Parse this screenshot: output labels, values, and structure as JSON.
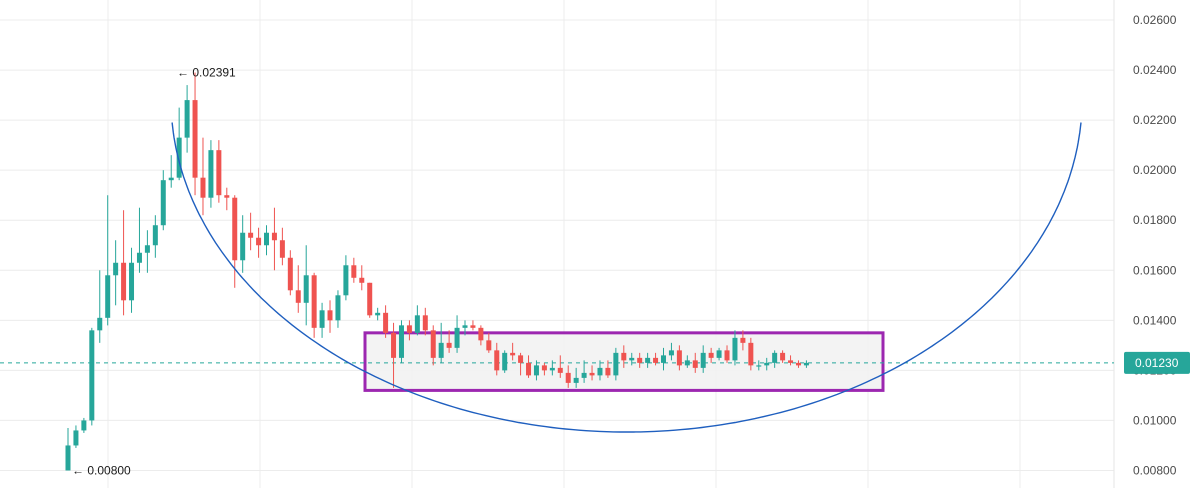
{
  "chart_data": {
    "type": "candlestick",
    "title": "",
    "ylim": [
      0.0073,
      0.0268
    ],
    "y_ticks": [
      "0.02600",
      "0.02400",
      "0.02200",
      "0.02000",
      "0.01800",
      "0.01600",
      "0.01400",
      "0.01200",
      "0.01000",
      "0.00800"
    ],
    "grid": true,
    "current_price": {
      "value": 0.0123,
      "label": "0.01230",
      "color": "#26a69a"
    },
    "colors": {
      "up": "#26a69a",
      "down": "#ef5350",
      "curve": "#2962ff",
      "range_box": "#9c27b0",
      "grid": "#ececec"
    },
    "annotations": {
      "high": {
        "value": 0.02391,
        "label": "← 0.02391"
      },
      "low": {
        "value": 0.008,
        "label": "← 0.00800"
      }
    },
    "range_box": {
      "from": 0.0112,
      "to": 0.0135
    },
    "candles": [
      [
        0.008,
        0.0097,
        0.008,
        0.009
      ],
      [
        0.009,
        0.0098,
        0.0089,
        0.0096
      ],
      [
        0.0096,
        0.0101,
        0.0095,
        0.01
      ],
      [
        0.01,
        0.0137,
        0.0098,
        0.0136
      ],
      [
        0.0136,
        0.016,
        0.0131,
        0.0141
      ],
      [
        0.0141,
        0.019,
        0.0138,
        0.0158
      ],
      [
        0.0158,
        0.0172,
        0.0146,
        0.0163
      ],
      [
        0.0163,
        0.0184,
        0.0142,
        0.0148
      ],
      [
        0.0148,
        0.0169,
        0.0143,
        0.0163
      ],
      [
        0.0163,
        0.0185,
        0.0159,
        0.0167
      ],
      [
        0.0167,
        0.0176,
        0.0159,
        0.017
      ],
      [
        0.017,
        0.0182,
        0.0165,
        0.0178
      ],
      [
        0.0178,
        0.02,
        0.0176,
        0.0196
      ],
      [
        0.0196,
        0.0206,
        0.0193,
        0.0197
      ],
      [
        0.0197,
        0.0225,
        0.0196,
        0.0213
      ],
      [
        0.0213,
        0.0234,
        0.0207,
        0.0228
      ],
      [
        0.0228,
        0.0239,
        0.019,
        0.0197
      ],
      [
        0.0197,
        0.0213,
        0.0182,
        0.0189
      ],
      [
        0.0189,
        0.0212,
        0.0185,
        0.0208
      ],
      [
        0.0208,
        0.0212,
        0.0187,
        0.019
      ],
      [
        0.019,
        0.0193,
        0.0184,
        0.0189
      ],
      [
        0.0189,
        0.019,
        0.0153,
        0.0164
      ],
      [
        0.0164,
        0.0182,
        0.0159,
        0.0175
      ],
      [
        0.0175,
        0.0183,
        0.0168,
        0.0173
      ],
      [
        0.0173,
        0.0177,
        0.0165,
        0.017
      ],
      [
        0.017,
        0.0178,
        0.0166,
        0.0175
      ],
      [
        0.0175,
        0.0185,
        0.016,
        0.0172
      ],
      [
        0.0172,
        0.0177,
        0.0162,
        0.0165
      ],
      [
        0.0165,
        0.0168,
        0.015,
        0.0152
      ],
      [
        0.0152,
        0.0162,
        0.0143,
        0.0147
      ],
      [
        0.0147,
        0.017,
        0.0138,
        0.0158
      ],
      [
        0.0158,
        0.0159,
        0.0133,
        0.0137
      ],
      [
        0.0137,
        0.0147,
        0.0133,
        0.0144
      ],
      [
        0.0144,
        0.0148,
        0.0135,
        0.014
      ],
      [
        0.014,
        0.0152,
        0.0137,
        0.015
      ],
      [
        0.015,
        0.0166,
        0.0148,
        0.0162
      ],
      [
        0.0162,
        0.0165,
        0.0155,
        0.0157
      ],
      [
        0.0157,
        0.0162,
        0.0152,
        0.0155
      ],
      [
        0.0155,
        0.0155,
        0.0141,
        0.0142
      ],
      [
        0.0142,
        0.0145,
        0.014,
        0.0143
      ],
      [
        0.0143,
        0.0146,
        0.0133,
        0.0135
      ],
      [
        0.0135,
        0.0139,
        0.0113,
        0.0125
      ],
      [
        0.0125,
        0.014,
        0.0123,
        0.0138
      ],
      [
        0.0138,
        0.014,
        0.0132,
        0.0135
      ],
      [
        0.0135,
        0.0146,
        0.0134,
        0.0142
      ],
      [
        0.0142,
        0.0145,
        0.0134,
        0.0136
      ],
      [
        0.0136,
        0.0138,
        0.0122,
        0.0125
      ],
      [
        0.0125,
        0.0139,
        0.0123,
        0.0131
      ],
      [
        0.0131,
        0.0136,
        0.0127,
        0.0129
      ],
      [
        0.0129,
        0.0142,
        0.0127,
        0.0137
      ],
      [
        0.0137,
        0.014,
        0.0134,
        0.0138
      ],
      [
        0.0138,
        0.014,
        0.0136,
        0.0137
      ],
      [
        0.0137,
        0.0138,
        0.013,
        0.0132
      ],
      [
        0.0132,
        0.0135,
        0.0127,
        0.0128
      ],
      [
        0.0128,
        0.0131,
        0.0118,
        0.012
      ],
      [
        0.012,
        0.0128,
        0.0119,
        0.0127
      ],
      [
        0.0127,
        0.0131,
        0.0124,
        0.0126
      ],
      [
        0.0126,
        0.0127,
        0.0118,
        0.0123
      ],
      [
        0.0123,
        0.0126,
        0.0117,
        0.0118
      ],
      [
        0.0118,
        0.0124,
        0.0116,
        0.0122
      ],
      [
        0.0122,
        0.0123,
        0.0118,
        0.012
      ],
      [
        0.012,
        0.0124,
        0.0118,
        0.0121
      ],
      [
        0.0121,
        0.0126,
        0.0117,
        0.0119
      ],
      [
        0.0119,
        0.0122,
        0.0113,
        0.0115
      ],
      [
        0.0115,
        0.0121,
        0.0113,
        0.0117
      ],
      [
        0.0117,
        0.0124,
        0.0115,
        0.0119
      ],
      [
        0.0119,
        0.0122,
        0.0116,
        0.0118
      ],
      [
        0.0118,
        0.0124,
        0.0116,
        0.0121
      ],
      [
        0.0121,
        0.0124,
        0.0117,
        0.0118
      ],
      [
        0.0118,
        0.0129,
        0.0116,
        0.0127
      ],
      [
        0.0127,
        0.013,
        0.0121,
        0.0124
      ],
      [
        0.0124,
        0.0127,
        0.0122,
        0.0125
      ],
      [
        0.0125,
        0.0127,
        0.0121,
        0.0123
      ],
      [
        0.0123,
        0.0127,
        0.0121,
        0.0125
      ],
      [
        0.0125,
        0.0127,
        0.0122,
        0.0123
      ],
      [
        0.0123,
        0.0129,
        0.012,
        0.0126
      ],
      [
        0.0126,
        0.0131,
        0.0124,
        0.0128
      ],
      [
        0.0128,
        0.013,
        0.012,
        0.0122
      ],
      [
        0.0122,
        0.0126,
        0.0121,
        0.0124
      ],
      [
        0.0124,
        0.0127,
        0.0119,
        0.0121
      ],
      [
        0.0121,
        0.013,
        0.0119,
        0.0127
      ],
      [
        0.0127,
        0.0129,
        0.0123,
        0.0125
      ],
      [
        0.0125,
        0.0129,
        0.0124,
        0.0128
      ],
      [
        0.0128,
        0.013,
        0.0123,
        0.0124
      ],
      [
        0.0124,
        0.0136,
        0.0122,
        0.0133
      ],
      [
        0.0133,
        0.0136,
        0.0128,
        0.0131
      ],
      [
        0.0131,
        0.0133,
        0.012,
        0.0122
      ],
      [
        0.0122,
        0.0124,
        0.012,
        0.0122
      ],
      [
        0.0122,
        0.0125,
        0.012,
        0.0123
      ],
      [
        0.0123,
        0.0128,
        0.0121,
        0.0127
      ],
      [
        0.0127,
        0.0128,
        0.0123,
        0.0124
      ],
      [
        0.0124,
        0.0126,
        0.0122,
        0.0123
      ],
      [
        0.0123,
        0.0124,
        0.0121,
        0.0122
      ],
      [
        0.0122,
        0.0124,
        0.0121,
        0.0123
      ]
    ]
  }
}
